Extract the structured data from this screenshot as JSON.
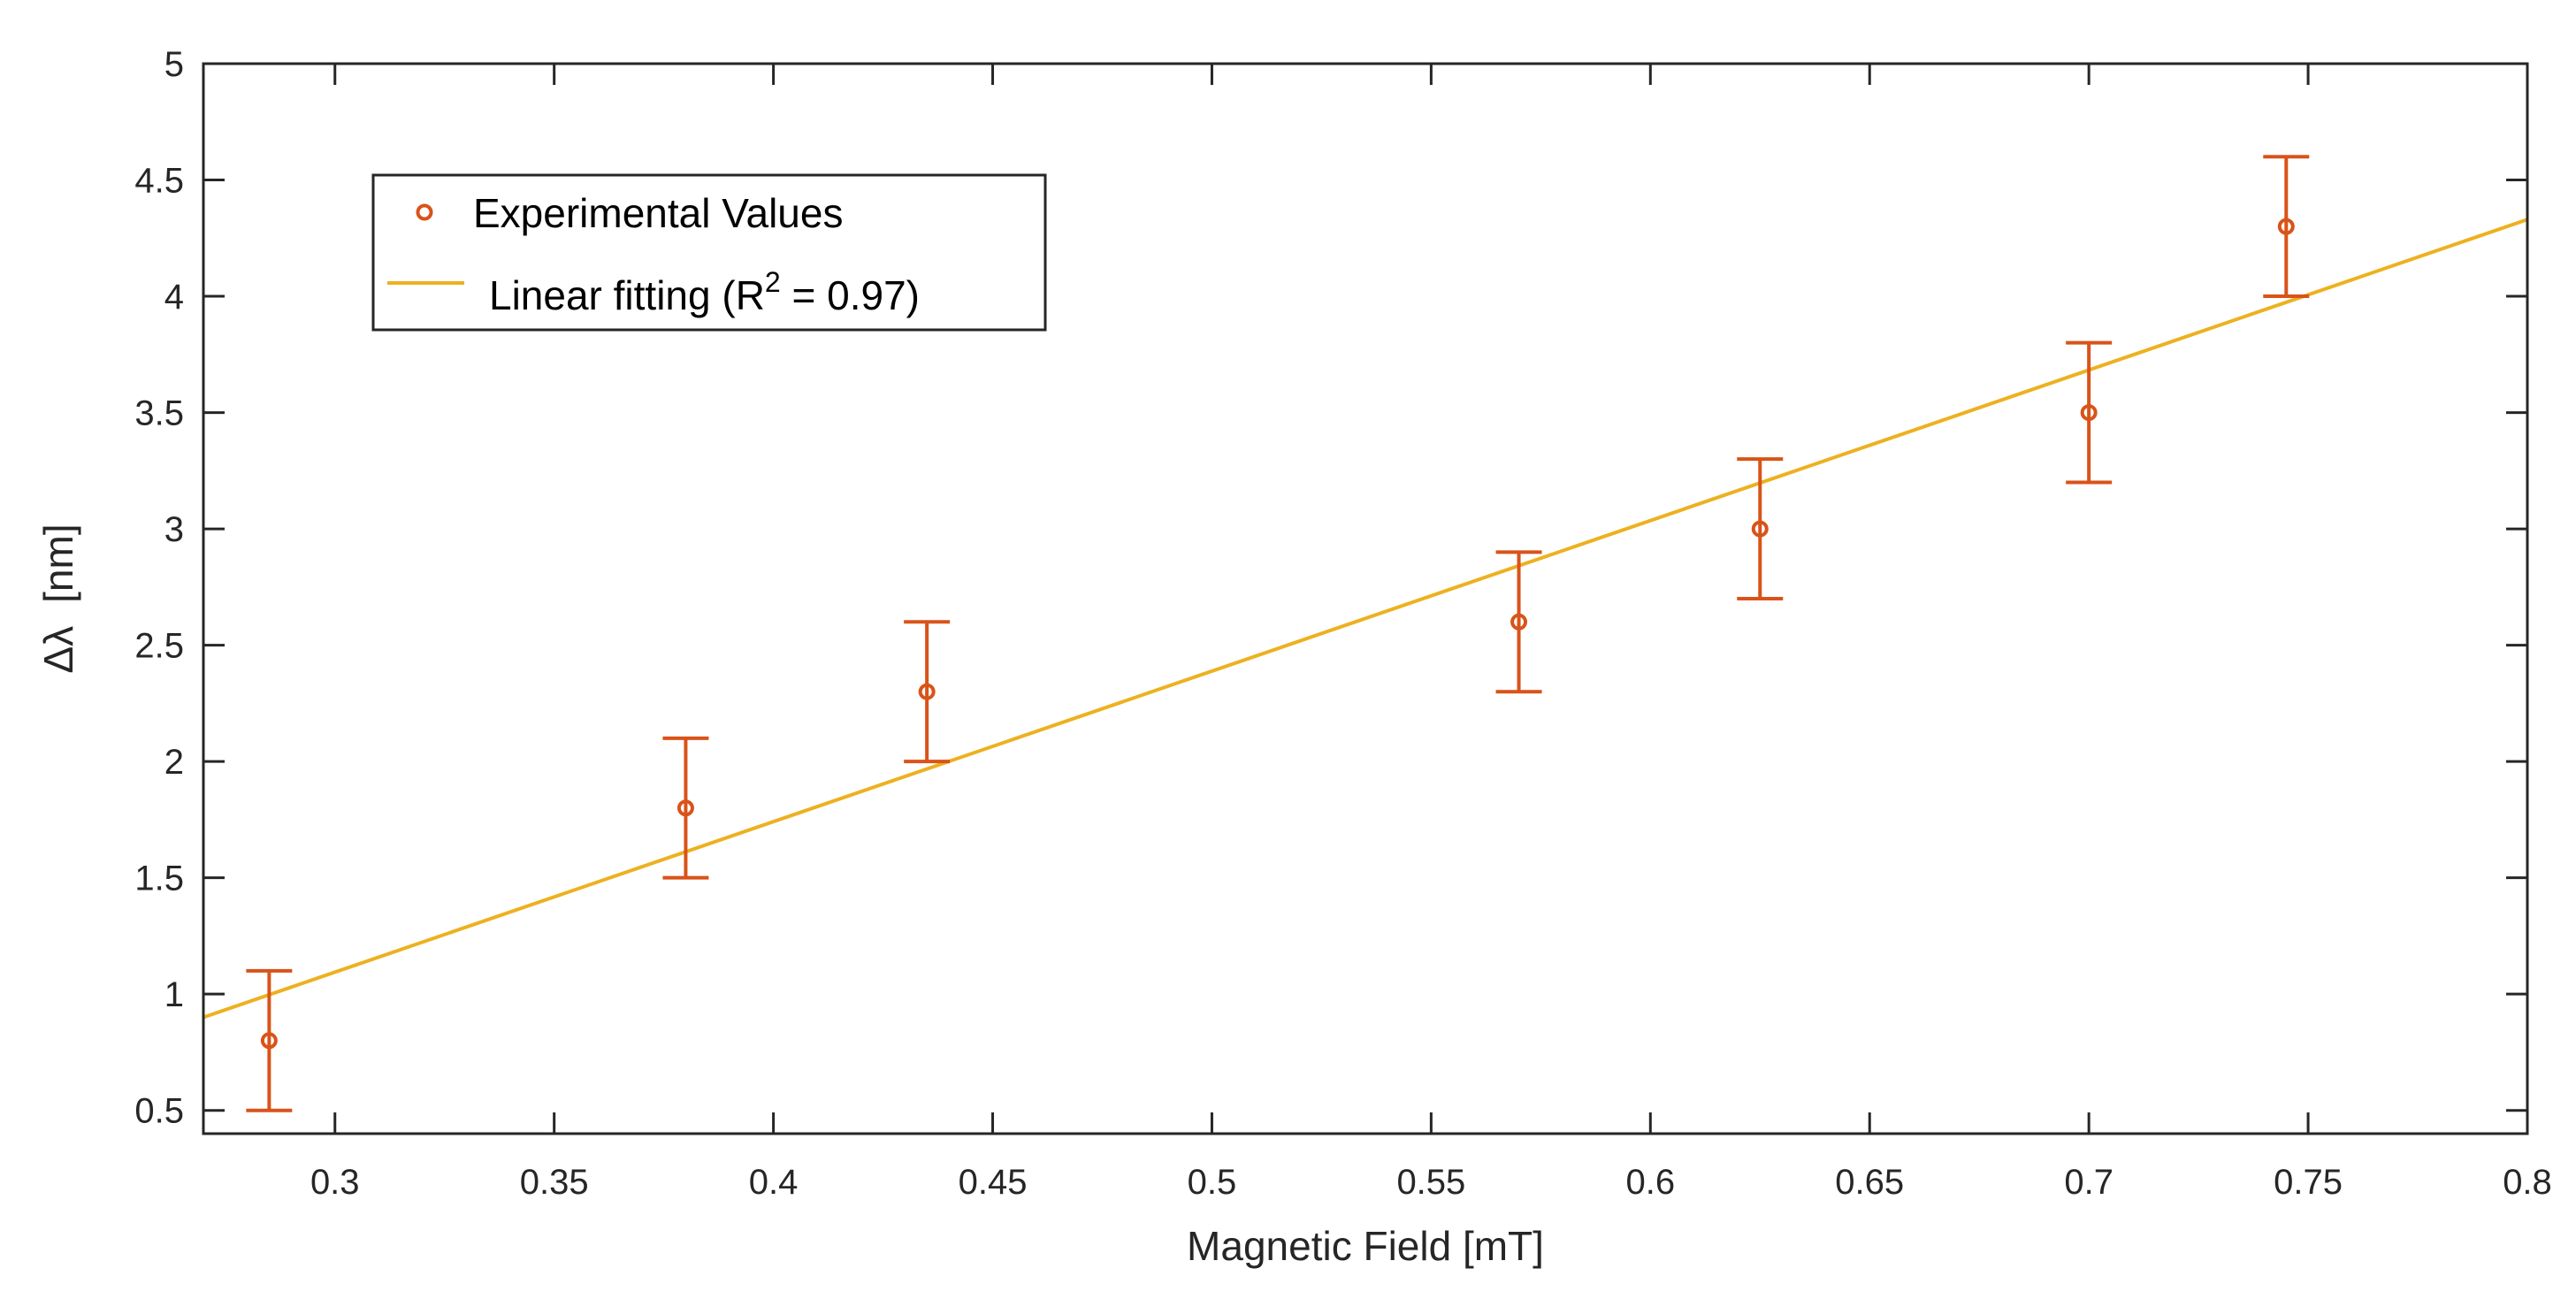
{
  "chart_data": {
    "type": "scatter",
    "title": "",
    "xlabel": "Magnetic Field [mT]",
    "ylabel_symbol": "Δλ",
    "ylabel_unit": "[nm]",
    "xlim": [
      0.27,
      0.8
    ],
    "ylim": [
      0.4,
      5
    ],
    "xticks": [
      0.3,
      0.35,
      0.4,
      0.45,
      0.5,
      0.55,
      0.6,
      0.65,
      0.7,
      0.75,
      0.8
    ],
    "xtick_labels": [
      "0.3",
      "0.35",
      "0.4",
      "0.45",
      "0.5",
      "0.55",
      "0.6",
      "0.65",
      "0.7",
      "0.75",
      "0.8"
    ],
    "yticks": [
      0.5,
      1,
      1.5,
      2,
      2.5,
      3,
      3.5,
      4,
      4.5,
      5
    ],
    "ytick_labels": [
      "0.5",
      "1",
      "1.5",
      "2",
      "2.5",
      "3",
      "3.5",
      "4",
      "4.5",
      "5"
    ],
    "grid": false,
    "legend_position": "top-left",
    "series": [
      {
        "name": "Experimental Values",
        "kind": "scatter-errorbar",
        "color": "#d95319",
        "x": [
          0.285,
          0.38,
          0.435,
          0.57,
          0.625,
          0.7,
          0.745
        ],
        "y": [
          0.8,
          1.8,
          2.3,
          2.6,
          3.0,
          3.5,
          4.3
        ],
        "error": [
          0.3,
          0.3,
          0.3,
          0.3,
          0.3,
          0.3,
          0.3
        ]
      },
      {
        "name_prefix": "Linear fitting (R",
        "name_sup": "2",
        "name_suffix": " = 0.97)",
        "kind": "line",
        "color": "#edb120",
        "x": [
          0.27,
          0.8
        ],
        "y": [
          0.9,
          4.33
        ]
      }
    ]
  }
}
